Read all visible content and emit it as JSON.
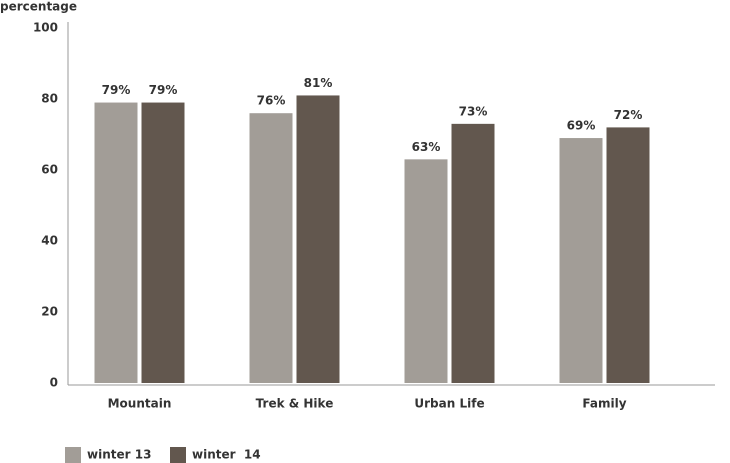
{
  "chart_data": {
    "type": "bar",
    "y_label": "percentage",
    "categories": [
      "Mountain",
      "Trek & Hike",
      "Urban Life",
      "Family"
    ],
    "series": [
      {
        "name": "winter 13",
        "color": "#a29d97",
        "values": [
          79,
          76,
          63,
          69
        ],
        "value_labels": [
          "79%",
          "76%",
          "63%",
          "69%"
        ]
      },
      {
        "name": "winter  14",
        "color": "#62574e",
        "values": [
          79,
          81,
          73,
          72
        ],
        "value_labels": [
          "79%",
          "81%",
          "73%",
          "72%"
        ]
      }
    ],
    "ylim": [
      0,
      100
    ],
    "yticks": [
      0,
      20,
      40,
      60,
      80,
      100
    ],
    "grid": false
  }
}
